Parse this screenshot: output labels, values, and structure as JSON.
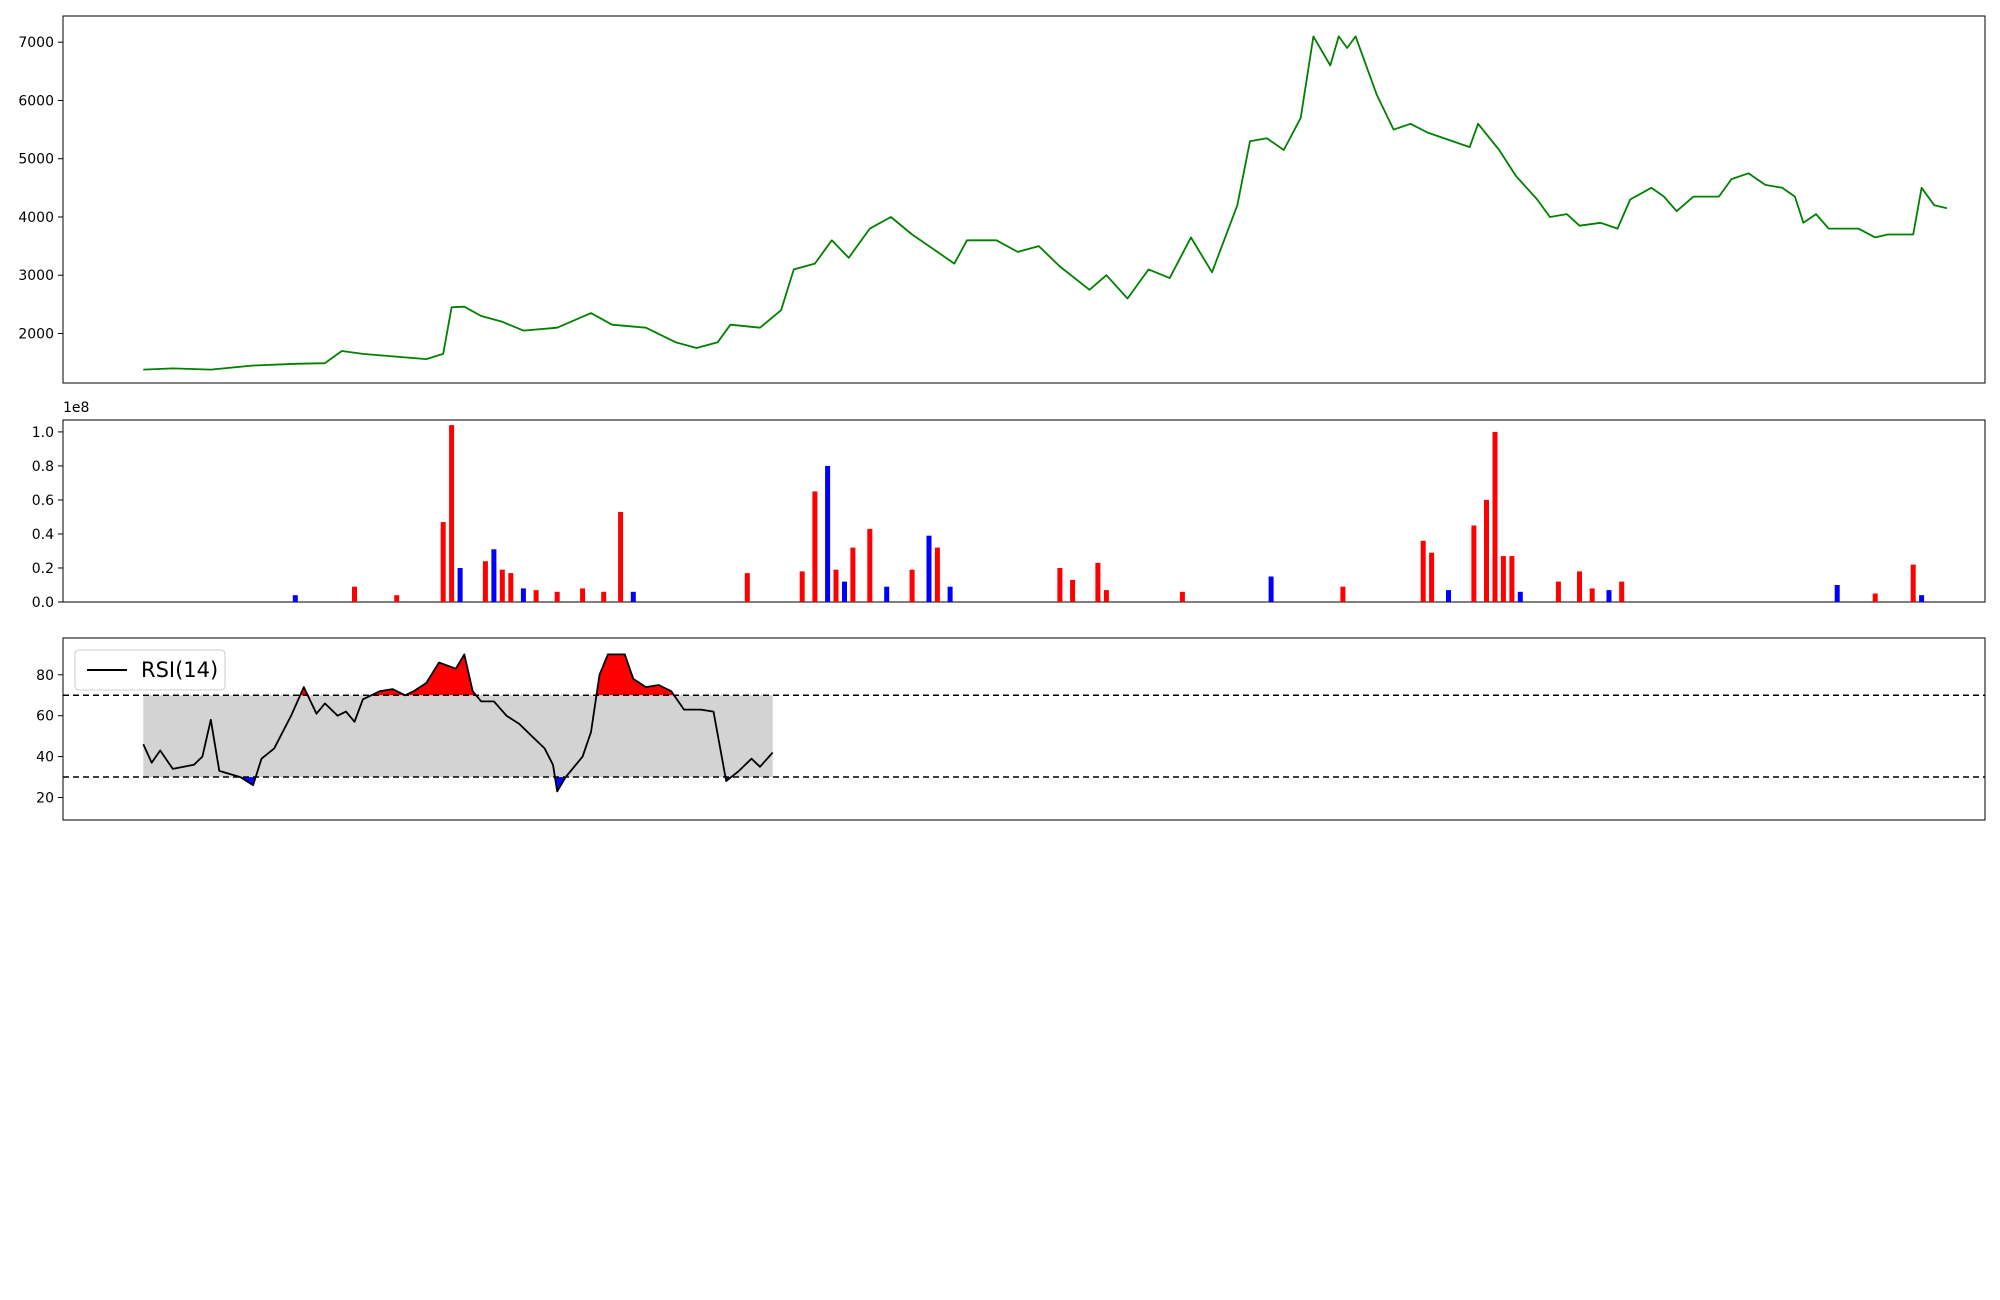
{
  "chart_data": [
    {
      "type": "line",
      "panel": "price",
      "title": "",
      "ylim": [
        1150,
        7450
      ],
      "yticks": [
        2000,
        3000,
        4000,
        5000,
        6000,
        7000
      ],
      "color": "#008000",
      "points": [
        [
          "2022-12-20",
          1380
        ],
        [
          "2022-12-27",
          1400
        ],
        [
          "2023-01-05",
          1380
        ],
        [
          "2023-01-15",
          1450
        ],
        [
          "2023-01-25",
          1480
        ],
        [
          "2023-02-01",
          1490
        ],
        [
          "2023-02-05",
          1700
        ],
        [
          "2023-02-10",
          1650
        ],
        [
          "2023-02-20",
          1590
        ],
        [
          "2023-02-25",
          1560
        ],
        [
          "2023-03-01",
          1650
        ],
        [
          "2023-03-03",
          2450
        ],
        [
          "2023-03-06",
          2460
        ],
        [
          "2023-03-10",
          2300
        ],
        [
          "2023-03-15",
          2200
        ],
        [
          "2023-03-20",
          2050
        ],
        [
          "2023-03-28",
          2100
        ],
        [
          "2023-04-05",
          2350
        ],
        [
          "2023-04-10",
          2150
        ],
        [
          "2023-04-18",
          2100
        ],
        [
          "2023-04-25",
          1850
        ],
        [
          "2023-04-30",
          1750
        ],
        [
          "2023-05-05",
          1850
        ],
        [
          "2023-05-08",
          2150
        ],
        [
          "2023-05-15",
          2100
        ],
        [
          "2023-05-20",
          2400
        ],
        [
          "2023-05-23",
          3100
        ],
        [
          "2023-05-28",
          3200
        ],
        [
          "2023-06-01",
          3600
        ],
        [
          "2023-06-05",
          3300
        ],
        [
          "2023-06-10",
          3800
        ],
        [
          "2023-06-15",
          4000
        ],
        [
          "2023-06-20",
          3700
        ],
        [
          "2023-06-25",
          3450
        ],
        [
          "2023-06-30",
          3200
        ],
        [
          "2023-07-03",
          3600
        ],
        [
          "2023-07-10",
          3600
        ],
        [
          "2023-07-15",
          3400
        ],
        [
          "2023-07-20",
          3500
        ],
        [
          "2023-07-25",
          3150
        ],
        [
          "2023-08-01",
          2750
        ],
        [
          "2023-08-05",
          3000
        ],
        [
          "2023-08-10",
          2600
        ],
        [
          "2023-08-15",
          3100
        ],
        [
          "2023-08-20",
          2950
        ],
        [
          "2023-08-25",
          3650
        ],
        [
          "2023-08-30",
          3050
        ],
        [
          "2023-09-05",
          4200
        ],
        [
          "2023-09-08",
          5300
        ],
        [
          "2023-09-12",
          5350
        ],
        [
          "2023-09-16",
          5150
        ],
        [
          "2023-09-20",
          5700
        ],
        [
          "2023-09-23",
          7100
        ],
        [
          "2023-09-27",
          6600
        ],
        [
          "2023-09-29",
          7100
        ],
        [
          "2023-10-01",
          6900
        ],
        [
          "2023-10-03",
          7100
        ],
        [
          "2023-10-08",
          6100
        ],
        [
          "2023-10-12",
          5500
        ],
        [
          "2023-10-16",
          5600
        ],
        [
          "2023-10-20",
          5450
        ],
        [
          "2023-10-30",
          5200
        ],
        [
          "2023-11-01",
          5600
        ],
        [
          "2023-11-06",
          5150
        ],
        [
          "2023-11-10",
          4700
        ],
        [
          "2023-11-15",
          4300
        ],
        [
          "2023-11-18",
          4000
        ],
        [
          "2023-11-22",
          4050
        ],
        [
          "2023-11-25",
          3850
        ],
        [
          "2023-11-30",
          3900
        ],
        [
          "2023-12-04",
          3800
        ],
        [
          "2023-12-07",
          4300
        ],
        [
          "2023-12-12",
          4500
        ],
        [
          "2023-12-15",
          4350
        ],
        [
          "2023-12-18",
          4100
        ],
        [
          "2023-12-22",
          4350
        ],
        [
          "2023-12-28",
          4350
        ],
        [
          "2023-12-31",
          4650
        ],
        [
          "2024-01-04",
          4750
        ],
        [
          "2024-01-08",
          4550
        ],
        [
          "2024-01-12",
          4500
        ],
        [
          "2024-01-15",
          4350
        ],
        [
          "2024-01-17",
          3900
        ],
        [
          "2024-01-20",
          4050
        ],
        [
          "2024-01-23",
          3800
        ],
        [
          "2024-01-30",
          3800
        ],
        [
          "2024-02-03",
          3650
        ],
        [
          "2024-02-06",
          3700
        ],
        [
          "2024-02-12",
          3700
        ],
        [
          "2024-02-14",
          4500
        ],
        [
          "2024-02-17",
          4200
        ],
        [
          "2024-02-20",
          4150
        ]
      ]
    },
    {
      "type": "bar",
      "panel": "volume",
      "scale_label": "1e8",
      "ylim": [
        0,
        1.07
      ],
      "yticks": [
        0.0,
        0.2,
        0.4,
        0.6,
        0.8,
        1.0
      ],
      "up_color": "#ff0000",
      "down_color": "#0000ff",
      "bars": [
        [
          "2023-01-25",
          0.04,
          "down"
        ],
        [
          "2023-02-08",
          0.09,
          "up"
        ],
        [
          "2023-02-18",
          0.04,
          "up"
        ],
        [
          "2023-03-01",
          0.47,
          "up"
        ],
        [
          "2023-03-03",
          1.04,
          "up"
        ],
        [
          "2023-03-05",
          0.2,
          "down"
        ],
        [
          "2023-03-11",
          0.24,
          "up"
        ],
        [
          "2023-03-13",
          0.31,
          "down"
        ],
        [
          "2023-03-15",
          0.19,
          "up"
        ],
        [
          "2023-03-17",
          0.17,
          "up"
        ],
        [
          "2023-03-20",
          0.08,
          "down"
        ],
        [
          "2023-03-23",
          0.07,
          "up"
        ],
        [
          "2023-03-28",
          0.06,
          "up"
        ],
        [
          "2023-04-03",
          0.08,
          "up"
        ],
        [
          "2023-04-08",
          0.06,
          "up"
        ],
        [
          "2023-04-12",
          0.53,
          "up"
        ],
        [
          "2023-04-15",
          0.06,
          "down"
        ],
        [
          "2023-05-12",
          0.17,
          "up"
        ],
        [
          "2023-05-25",
          0.18,
          "up"
        ],
        [
          "2023-05-28",
          0.65,
          "up"
        ],
        [
          "2023-05-31",
          0.8,
          "down"
        ],
        [
          "2023-06-02",
          0.19,
          "up"
        ],
        [
          "2023-06-04",
          0.12,
          "down"
        ],
        [
          "2023-06-06",
          0.32,
          "up"
        ],
        [
          "2023-06-10",
          0.43,
          "up"
        ],
        [
          "2023-06-14",
          0.09,
          "down"
        ],
        [
          "2023-06-20",
          0.19,
          "up"
        ],
        [
          "2023-06-24",
          0.39,
          "down"
        ],
        [
          "2023-06-26",
          0.32,
          "up"
        ],
        [
          "2023-06-29",
          0.09,
          "down"
        ],
        [
          "2023-07-25",
          0.2,
          "up"
        ],
        [
          "2023-07-28",
          0.13,
          "up"
        ],
        [
          "2023-08-03",
          0.23,
          "up"
        ],
        [
          "2023-08-05",
          0.07,
          "up"
        ],
        [
          "2023-08-23",
          0.06,
          "up"
        ],
        [
          "2023-09-13",
          0.15,
          "down"
        ],
        [
          "2023-09-30",
          0.09,
          "up"
        ],
        [
          "2023-10-19",
          0.36,
          "up"
        ],
        [
          "2023-10-21",
          0.29,
          "up"
        ],
        [
          "2023-10-25",
          0.07,
          "down"
        ],
        [
          "2023-10-31",
          0.45,
          "up"
        ],
        [
          "2023-11-03",
          0.6,
          "up"
        ],
        [
          "2023-11-05",
          1.0,
          "up"
        ],
        [
          "2023-11-07",
          0.27,
          "up"
        ],
        [
          "2023-11-09",
          0.27,
          "up"
        ],
        [
          "2023-11-11",
          0.06,
          "down"
        ],
        [
          "2023-11-20",
          0.12,
          "up"
        ],
        [
          "2023-11-25",
          0.18,
          "up"
        ],
        [
          "2023-11-28",
          0.08,
          "up"
        ],
        [
          "2023-12-02",
          0.07,
          "down"
        ],
        [
          "2023-12-05",
          0.12,
          "up"
        ],
        [
          "2024-01-25",
          0.1,
          "down"
        ],
        [
          "2024-02-03",
          0.05,
          "up"
        ],
        [
          "2024-02-12",
          0.22,
          "up"
        ],
        [
          "2024-02-14",
          0.04,
          "down"
        ]
      ]
    },
    {
      "type": "line",
      "panel": "rsi",
      "legend": [
        "RSI(14)"
      ],
      "legend_position": "upper-left",
      "ylim": [
        9,
        98
      ],
      "yticks": [
        20,
        40,
        60,
        80
      ],
      "upper_band": 70,
      "lower_band": 30,
      "band_fill_color": "#d3d3d3",
      "over_color": "#ff0000",
      "under_color": "#0000ff",
      "points": [
        [
          "2022-12-20",
          46
        ],
        [
          "2022-12-22",
          37
        ],
        [
          "2022-12-24",
          43
        ],
        [
          "2022-12-27",
          34
        ],
        [
          "2023-01-01",
          36
        ],
        [
          "2023-01-03",
          40
        ],
        [
          "2023-01-05",
          58
        ],
        [
          "2023-01-07",
          33
        ],
        [
          "2023-01-12",
          30
        ],
        [
          "2023-01-15",
          26
        ],
        [
          "2023-01-17",
          39
        ],
        [
          "2023-01-20",
          44
        ],
        [
          "2023-01-24",
          60
        ],
        [
          "2023-01-27",
          74
        ],
        [
          "2023-01-30",
          61
        ],
        [
          "2023-02-01",
          66
        ],
        [
          "2023-02-04",
          60
        ],
        [
          "2023-02-06",
          62
        ],
        [
          "2023-02-08",
          57
        ],
        [
          "2023-02-10",
          68
        ],
        [
          "2023-02-14",
          72
        ],
        [
          "2023-02-17",
          73
        ],
        [
          "2023-02-20",
          70
        ],
        [
          "2023-02-22",
          72
        ],
        [
          "2023-02-25",
          76
        ],
        [
          "2023-02-28",
          86
        ],
        [
          "2023-03-04",
          83
        ],
        [
          "2023-03-06",
          90
        ],
        [
          "2023-03-08",
          72
        ],
        [
          "2023-03-10",
          67
        ],
        [
          "2023-03-13",
          67
        ],
        [
          "2023-03-16",
          60
        ],
        [
          "2023-03-19",
          56
        ],
        [
          "2023-03-22",
          50
        ],
        [
          "2023-03-25",
          44
        ],
        [
          "2023-03-27",
          36
        ],
        [
          "2023-03-28",
          23
        ],
        [
          "2023-03-30",
          30
        ],
        [
          "2023-04-03",
          40
        ],
        [
          "2023-04-05",
          52
        ],
        [
          "2023-04-07",
          80
        ],
        [
          "2023-04-09",
          90
        ],
        [
          "2023-04-13",
          90
        ],
        [
          "2023-04-15",
          78
        ],
        [
          "2023-04-18",
          74
        ],
        [
          "2023-04-21",
          75
        ],
        [
          "2023-04-24",
          72
        ],
        [
          "2023-04-27",
          63
        ],
        [
          "2023-05-01",
          63
        ],
        [
          "2023-05-04",
          62
        ],
        [
          "2023-05-07",
          28
        ],
        [
          "2023-05-10",
          33
        ],
        [
          "2023-05-13",
          39
        ],
        [
          "2023-05-15",
          35
        ],
        [
          "2023-05-18",
          42
        ]
      ]
    }
  ]
}
